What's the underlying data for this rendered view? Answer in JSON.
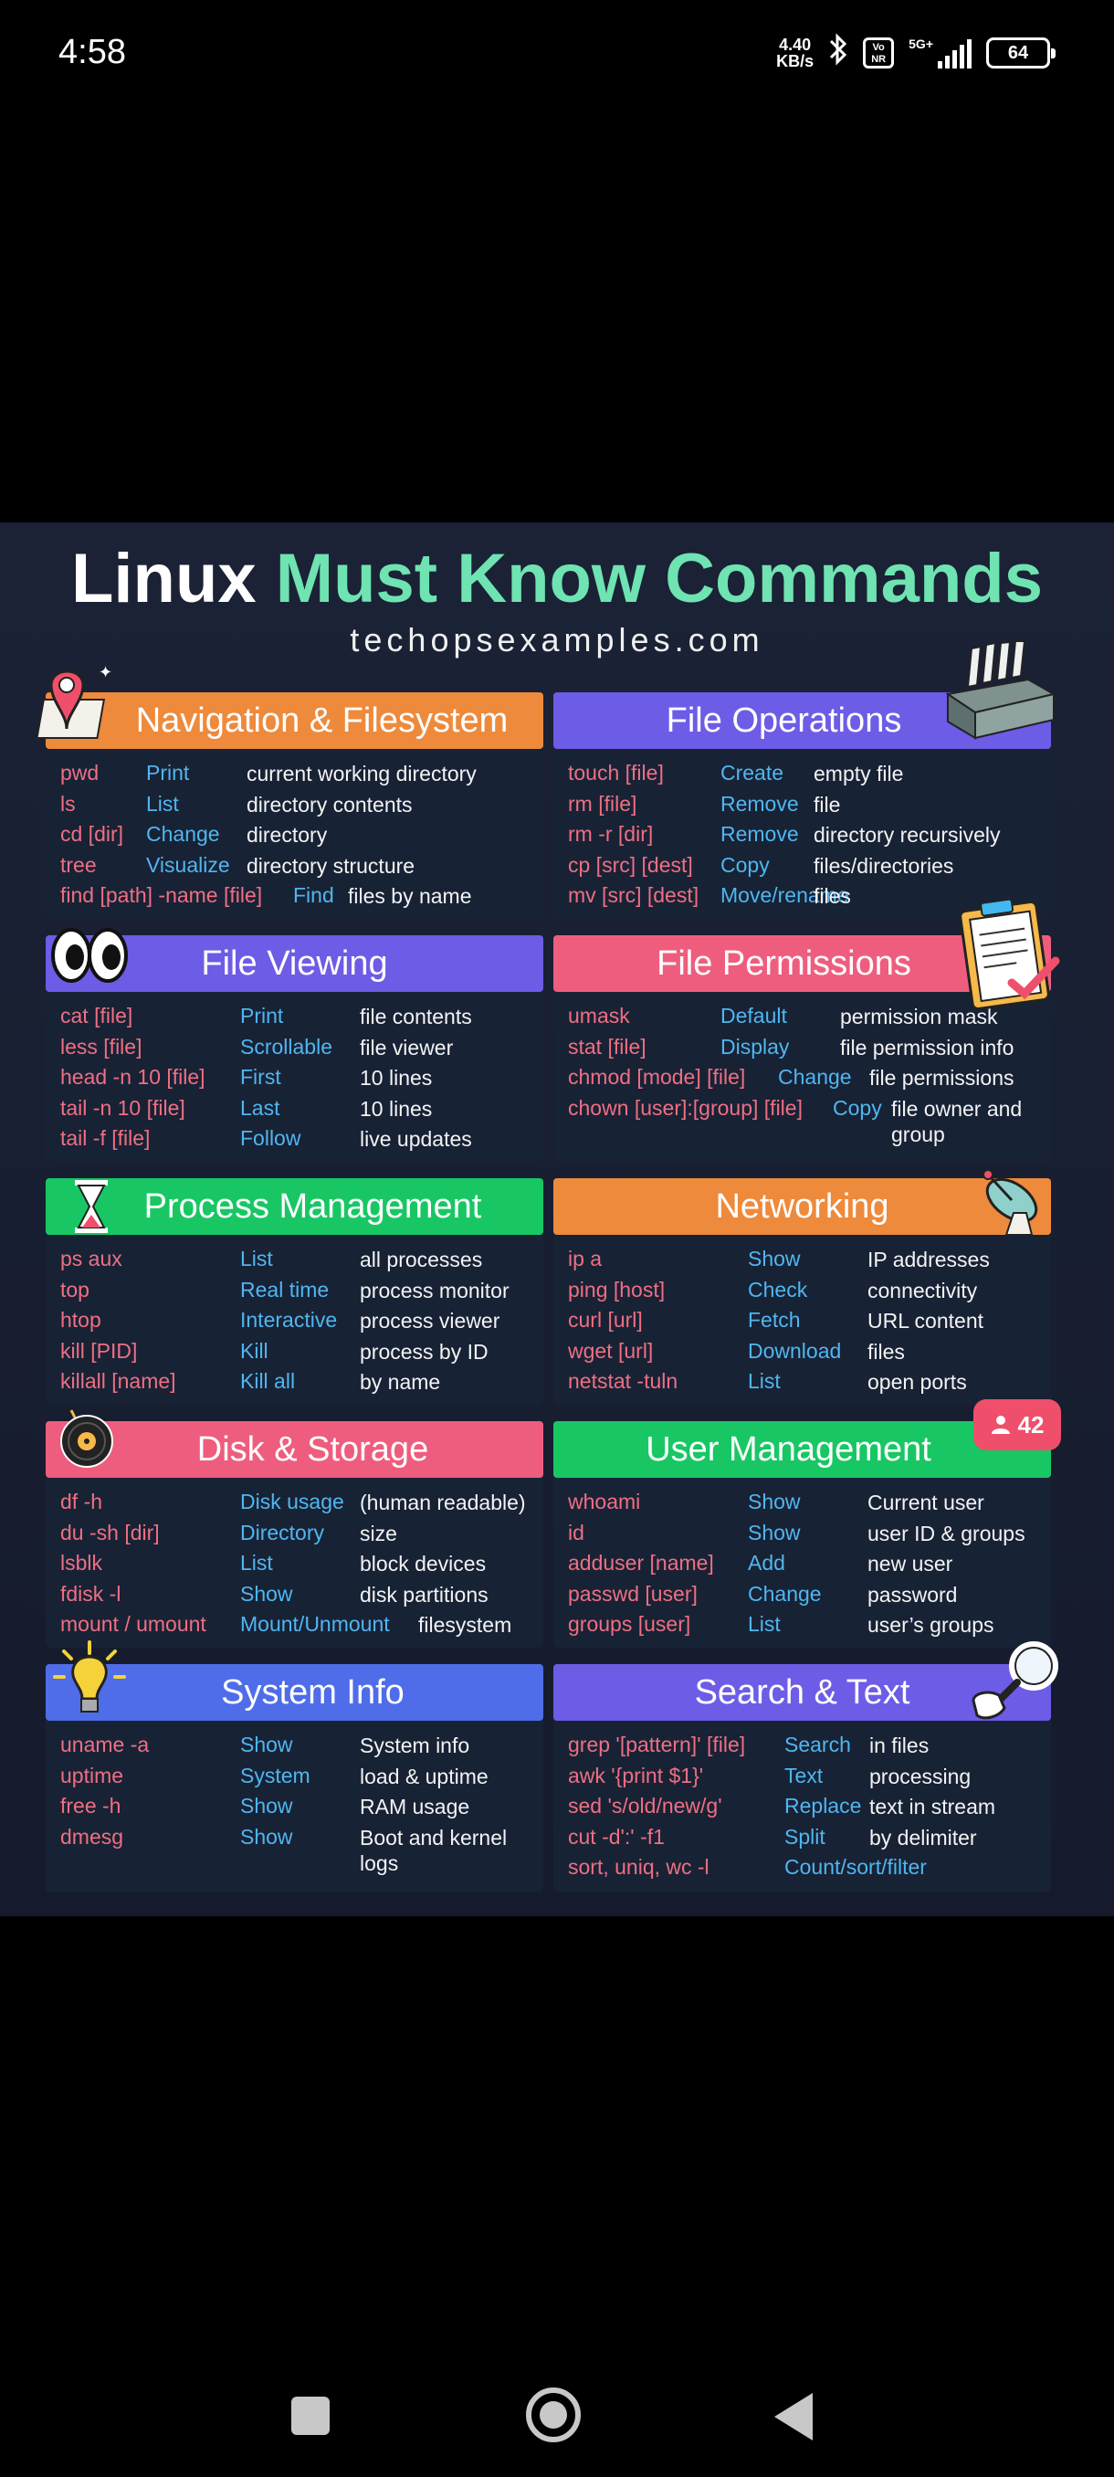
{
  "status": {
    "time": "4:58",
    "speed_value": "4.40",
    "speed_unit": "KB/s",
    "vonr": "Vo NR",
    "network": "5G+",
    "battery": "64"
  },
  "poster": {
    "title_white": "Linux ",
    "title_green": "Must Know Commands",
    "subtitle": "techopsexamples.com"
  },
  "notification_count": "42",
  "sections": [
    {
      "title": "Navigation & Filesystem",
      "color": "#ee8a3c",
      "rows": [
        {
          "cmd": "pwd",
          "act": "Print",
          "desc": "current working directory"
        },
        {
          "cmd": "ls",
          "act": "List",
          "desc": "directory contents"
        },
        {
          "cmd": "cd [dir]",
          "act": "Change",
          "desc": "directory"
        },
        {
          "cmd": "tree",
          "act": "Visualize",
          "desc": "directory structure"
        },
        {
          "cmd": "find [path] -name [file]",
          "act": "Find",
          "desc": "files by name"
        }
      ]
    },
    {
      "title": "File Operations",
      "color": "#6d5ce6",
      "rows": [
        {
          "cmd": "touch [file]",
          "act": "Create",
          "desc": "empty file"
        },
        {
          "cmd": "rm [file]",
          "act": "Remove",
          "desc": "file"
        },
        {
          "cmd": "rm -r [dir]",
          "act": "Remove",
          "desc": "directory recursively"
        },
        {
          "cmd": "cp [src] [dest]",
          "act": "Copy",
          "desc": "files/directories"
        },
        {
          "cmd": "mv [src] [dest]",
          "act": "Move/rename",
          "desc": "files"
        }
      ]
    },
    {
      "title": "File Viewing",
      "color": "#6d5ce6",
      "rows": [
        {
          "cmd": "cat [file]",
          "act": "Print",
          "desc": "file contents"
        },
        {
          "cmd": "less [file]",
          "act": "Scrollable",
          "desc": "file viewer"
        },
        {
          "cmd": "head -n 10 [file]",
          "act": "First",
          "desc": "10 lines"
        },
        {
          "cmd": "tail -n 10 [file]",
          "act": "Last",
          "desc": "10 lines"
        },
        {
          "cmd": "tail -f [file]",
          "act": "Follow",
          "desc": "live updates"
        }
      ]
    },
    {
      "title": "File Permissions",
      "color": "#ef5d7e",
      "rows": [
        {
          "cmd": "umask",
          "act": "Default",
          "desc": "permission mask"
        },
        {
          "cmd": "stat [file]",
          "act": "Display",
          "desc": "file permission info"
        },
        {
          "cmd": "chmod [mode] [file]",
          "act": "Change",
          "desc": "file permissions"
        },
        {
          "cmd": "chown [user]:[group] [file]",
          "act": "Copy",
          "desc": "file owner and group"
        }
      ]
    },
    {
      "title": "Process Management",
      "color": "#18c764",
      "rows": [
        {
          "cmd": "ps aux",
          "act": "List",
          "desc": "all processes"
        },
        {
          "cmd": "top",
          "act": "Real time",
          "desc": "process monitor"
        },
        {
          "cmd": "htop",
          "act": "Interactive",
          "desc": "process viewer"
        },
        {
          "cmd": "kill [PID]",
          "act": "Kill",
          "desc": "process by ID"
        },
        {
          "cmd": "killall [name]",
          "act": "Kill all",
          "desc": "by name"
        }
      ]
    },
    {
      "title": "Networking",
      "color": "#ee8a3c",
      "rows": [
        {
          "cmd": "ip a",
          "act": "Show",
          "desc": "IP addresses"
        },
        {
          "cmd": "ping [host]",
          "act": "Check",
          "desc": "connectivity"
        },
        {
          "cmd": "curl [url]",
          "act": "Fetch",
          "desc": "URL content"
        },
        {
          "cmd": "wget [url]",
          "act": "Download",
          "desc": "files"
        },
        {
          "cmd": "netstat -tuln",
          "act": "List",
          "desc": "open ports"
        }
      ]
    },
    {
      "title": "Disk & Storage",
      "color": "#ef5d7e",
      "rows": [
        {
          "cmd": "df -h",
          "act": "Disk usage",
          "desc": "(human readable)"
        },
        {
          "cmd": "du -sh [dir]",
          "act": "Directory",
          "desc": "size"
        },
        {
          "cmd": "lsblk",
          "act": "List",
          "desc": "block devices"
        },
        {
          "cmd": "fdisk -l",
          "act": "Show",
          "desc": "disk partitions"
        },
        {
          "cmd": "mount / umount",
          "act": "Mount/Unmount",
          "desc": "filesystem"
        }
      ]
    },
    {
      "title": "User Management",
      "color": "#18c764",
      "rows": [
        {
          "cmd": "whoami",
          "act": "Show",
          "desc": "Current user"
        },
        {
          "cmd": "id",
          "act": "Show",
          "desc": "user ID & groups"
        },
        {
          "cmd": "adduser [name]",
          "act": "Add",
          "desc": "new user"
        },
        {
          "cmd": "passwd [user]",
          "act": "Change",
          "desc": "password"
        },
        {
          "cmd": "groups [user]",
          "act": "List",
          "desc": "user’s groups"
        }
      ]
    },
    {
      "title": "System Info",
      "color": "#4f6de8",
      "rows": [
        {
          "cmd": "uname -a",
          "act": "Show",
          "desc": "System info"
        },
        {
          "cmd": "uptime",
          "act": "System",
          "desc": "load & uptime"
        },
        {
          "cmd": "free -h",
          "act": "Show",
          "desc": "RAM usage"
        },
        {
          "cmd": "dmesg",
          "act": "Show",
          "desc": "Boot and kernel logs"
        }
      ]
    },
    {
      "title": "Search & Text",
      "color": "#6d5ce6",
      "rows": [
        {
          "cmd": "grep '[pattern]' [file]",
          "act": "Search",
          "desc": "in files"
        },
        {
          "cmd": "awk '{print $1}'",
          "act": "Text",
          "desc": "processing"
        },
        {
          "cmd": "sed 's/old/new/g'",
          "act": "Replace",
          "desc": "text in stream"
        },
        {
          "cmd": "cut -d':' -f1",
          "act": "Split",
          "desc": "by delimiter"
        },
        {
          "cmd": "sort, uniq, wc -l",
          "act": "Count/sort/filter",
          "desc": ""
        }
      ]
    }
  ]
}
